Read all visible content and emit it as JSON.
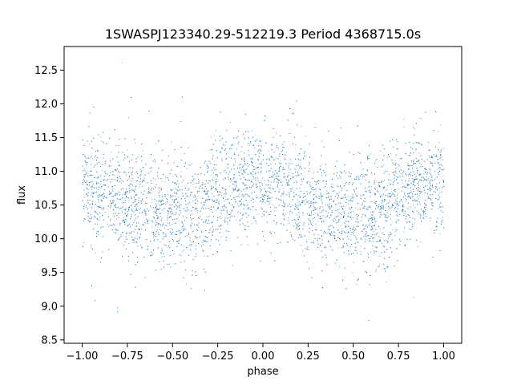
{
  "chart_data": {
    "type": "scatter",
    "title": "1SWASPJ123340.29-512219.3 Period 4368715.0s",
    "xlabel": "phase",
    "ylabel": "flux",
    "xlim": [
      -1.1,
      1.1
    ],
    "ylim": [
      8.45,
      12.85
    ],
    "xticks": [
      -1.0,
      -0.75,
      -0.5,
      -0.25,
      0.0,
      0.25,
      0.5,
      0.75,
      1.0
    ],
    "xtick_labels": [
      "−1.00",
      "−0.75",
      "−0.50",
      "−0.25",
      "0.00",
      "0.25",
      "0.50",
      "0.75",
      "1.00"
    ],
    "yticks": [
      8.5,
      9.0,
      9.5,
      10.0,
      10.5,
      11.0,
      11.5,
      12.0,
      12.5
    ],
    "ytick_labels": [
      "8.5",
      "9.0",
      "9.5",
      "10.0",
      "10.5",
      "11.0",
      "11.5",
      "12.0",
      "12.5"
    ],
    "grid": false,
    "point_color": "#1f77b4",
    "series": [
      {
        "profile_phase": [
          -1.0,
          -0.9,
          -0.8,
          -0.7,
          -0.6,
          -0.5,
          -0.4,
          -0.3,
          -0.2,
          -0.1,
          0.0,
          0.1,
          0.2,
          0.3,
          0.4,
          0.5,
          0.6,
          0.7,
          0.8,
          0.9,
          1.0
        ],
        "profile_median_flux": [
          10.8,
          10.75,
          10.6,
          10.5,
          10.45,
          10.4,
          10.35,
          10.5,
          10.75,
          10.85,
          10.85,
          10.75,
          10.6,
          10.5,
          10.45,
          10.4,
          10.35,
          10.5,
          10.75,
          10.85,
          10.8
        ],
        "profile_spread": [
          0.4,
          0.4,
          0.4,
          0.4,
          0.4,
          0.38,
          0.45,
          0.45,
          0.35,
          0.38,
          0.4,
          0.4,
          0.4,
          0.4,
          0.4,
          0.38,
          0.45,
          0.45,
          0.35,
          0.38,
          0.4
        ]
      }
    ]
  }
}
